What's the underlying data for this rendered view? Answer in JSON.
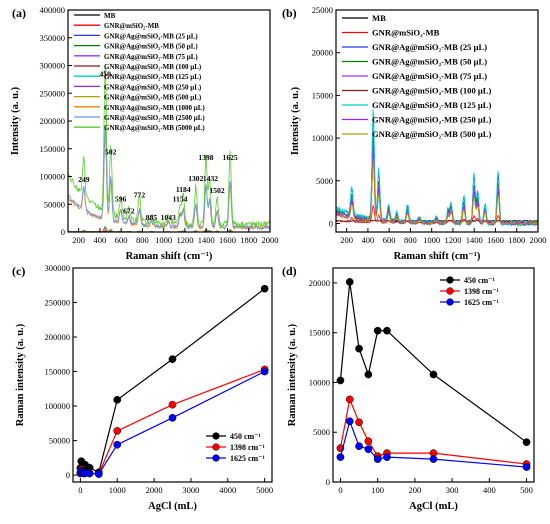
{
  "chart_data": [
    {
      "panel": "(a)",
      "type": "line",
      "xlabel": "Raman shift (cm⁻¹)",
      "ylabel": "Intensity (a. u.)",
      "xlim": [
        100,
        2000
      ],
      "ylim": [
        0,
        400000
      ],
      "xticks": [
        200,
        400,
        600,
        800,
        1000,
        1200,
        1400,
        1600,
        1800,
        2000
      ],
      "yticks": [
        0,
        50000,
        100000,
        150000,
        200000,
        250000,
        300000,
        350000,
        400000
      ],
      "legend_position": "top-left",
      "series": [
        {
          "name": "MB",
          "color": "#000000"
        },
        {
          "name": "GNR@mSiO₂-MB",
          "color": "#ff0000"
        },
        {
          "name": "GNR@Ag@mSiO₂-MB (25 μL)",
          "color": "#1f3cff"
        },
        {
          "name": "GNR@Ag@mSiO₂-MB (50 μL)",
          "color": "#008000"
        },
        {
          "name": "GNR@Ag@mSiO₂-MB (75 μL)",
          "color": "#9b30ff"
        },
        {
          "name": "GNR@Ag@mSiO₂-MB (100 μL)",
          "color": "#8b1a1a"
        },
        {
          "name": "GNR@Ag@mSiO₂-MB (125 μL)",
          "color": "#00cccc"
        },
        {
          "name": "GNR@Ag@mSiO₂-MB (250 μL)",
          "color": "#a020f0"
        },
        {
          "name": "GNR@Ag@mSiO₂-MB (500 μL)",
          "color": "#b5a000"
        },
        {
          "name": "GNR@Ag@mSiO₂-MB (1000 μL)",
          "color": "#ff7f00"
        },
        {
          "name": "GNR@Ag@mSiO₂-MB (2500 μL)",
          "color": "#6495ed"
        },
        {
          "name": "GNR@Ag@mSiO₂-MB (5000 μL)",
          "color": "#5ccc2e"
        }
      ],
      "annotations": [
        {
          "text": "249",
          "x": 249,
          "y": 90000
        },
        {
          "text": "450",
          "x": 450,
          "y": 280000
        },
        {
          "text": "502",
          "x": 502,
          "y": 140000
        },
        {
          "text": "596",
          "x": 596,
          "y": 55000
        },
        {
          "text": "672",
          "x": 672,
          "y": 33000
        },
        {
          "text": "772",
          "x": 772,
          "y": 62000
        },
        {
          "text": "885",
          "x": 885,
          "y": 22000
        },
        {
          "text": "1043",
          "x": 1043,
          "y": 22000
        },
        {
          "text": "1154",
          "x": 1154,
          "y": 55000
        },
        {
          "text": "1184",
          "x": 1184,
          "y": 72000
        },
        {
          "text": "1302",
          "x": 1302,
          "y": 92000
        },
        {
          "text": "1398",
          "x": 1398,
          "y": 130000
        },
        {
          "text": "1432",
          "x": 1440,
          "y": 92000
        },
        {
          "text": "1502",
          "x": 1502,
          "y": 70000
        },
        {
          "text": "1625",
          "x": 1625,
          "y": 130000
        }
      ]
    },
    {
      "panel": "(b)",
      "type": "line",
      "xlabel": "Raman shift (cm⁻¹)",
      "ylabel": "Intensity (a. u.)",
      "xlim": [
        100,
        2000
      ],
      "ylim": [
        -1000,
        25000
      ],
      "xticks": [
        200,
        400,
        600,
        800,
        1000,
        1200,
        1400,
        1600,
        1800,
        2000
      ],
      "yticks": [
        0,
        5000,
        10000,
        15000,
        20000,
        25000
      ],
      "legend_position": "top-right",
      "series": [
        {
          "name": "MB",
          "color": "#000000"
        },
        {
          "name": "GNR@mSiO₂-MB",
          "color": "#ff0000"
        },
        {
          "name": "GNR@Ag@mSiO₂-MB (25 μL)",
          "color": "#1f3cff"
        },
        {
          "name": "GNR@Ag@mSiO₂-MB (50 μL)",
          "color": "#008000"
        },
        {
          "name": "GNR@Ag@mSiO₂-MB (75 μL)",
          "color": "#9b30ff"
        },
        {
          "name": "GNR@Ag@mSiO₂-MB (100 μL)",
          "color": "#8b1a1a"
        },
        {
          "name": "GNR@Ag@mSiO₂-MB (125 μL)",
          "color": "#00cccc"
        },
        {
          "name": "GNR@Ag@mSiO₂-MB (250 μL)",
          "color": "#a020f0"
        },
        {
          "name": "GNR@Ag@mSiO₂-MB (500 μL)",
          "color": "#b5a000"
        }
      ]
    },
    {
      "panel": "(c)",
      "type": "line",
      "xlabel": "AgCl (mL)",
      "ylabel": "Raman intensity (a. u.)",
      "xlim": [
        -200,
        5200
      ],
      "ylim": [
        -10000,
        300000
      ],
      "xticks": [
        0,
        1000,
        2000,
        3000,
        4000,
        5000
      ],
      "yticks": [
        0,
        50000,
        100000,
        150000,
        200000,
        250000,
        300000
      ],
      "legend_position": "bottom-right",
      "x": [
        0,
        25,
        50,
        75,
        100,
        125,
        250,
        500,
        1000,
        2500,
        5000
      ],
      "series": [
        {
          "name": "450 cm⁻¹",
          "color": "#000000",
          "values": [
            10200,
            20100,
            13400,
            10800,
            15200,
            15200,
            10800,
            4000,
            109000,
            168000,
            270000
          ]
        },
        {
          "name": "1398 cm⁻¹",
          "color": "#ff0000",
          "values": [
            3400,
            8300,
            6000,
            4100,
            2600,
            2900,
            2900,
            1800,
            64000,
            102000,
            153000
          ]
        },
        {
          "name": "1625 cm⁻¹",
          "color": "#0000ff",
          "values": [
            2500,
            6100,
            3600,
            3300,
            2300,
            2500,
            2300,
            1500,
            44000,
            83000,
            150000
          ]
        }
      ]
    },
    {
      "panel": "(d)",
      "type": "line",
      "xlabel": "AgCl (mL)",
      "ylabel": "Raman intensity (a. u.)",
      "xlim": [
        -20,
        520
      ],
      "ylim": [
        0,
        21500
      ],
      "xticks": [
        0,
        100,
        200,
        300,
        400,
        500
      ],
      "yticks": [
        0,
        5000,
        10000,
        15000,
        20000
      ],
      "legend_position": "top-right",
      "x": [
        0,
        25,
        50,
        75,
        100,
        125,
        250,
        500
      ],
      "series": [
        {
          "name": "450 cm⁻¹",
          "color": "#000000",
          "values": [
            10200,
            20100,
            13400,
            10800,
            15200,
            15200,
            10800,
            4000
          ]
        },
        {
          "name": "1398 cm⁻¹",
          "color": "#ff0000",
          "values": [
            3400,
            8300,
            6000,
            4100,
            2600,
            2900,
            2900,
            1800
          ]
        },
        {
          "name": "1625 cm⁻¹",
          "color": "#0000ff",
          "values": [
            2500,
            6100,
            3600,
            3300,
            2300,
            2500,
            2300,
            1500
          ]
        }
      ]
    }
  ]
}
